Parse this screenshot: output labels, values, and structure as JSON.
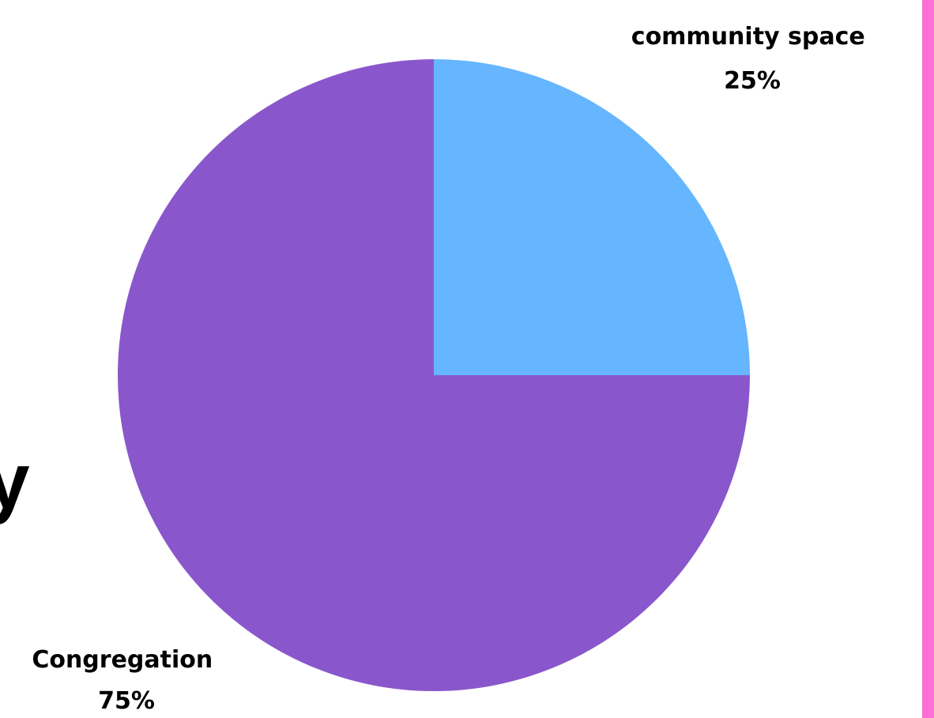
{
  "chart_data": {
    "type": "pie",
    "slices": [
      {
        "label": "community space",
        "value": 25,
        "value_label": "25%",
        "color": "#66b5ff"
      },
      {
        "label": "Congregation",
        "value": 75,
        "value_label": "75%",
        "color": "#8957cb"
      }
    ],
    "start_angle": "12 o'clock",
    "direction": "clockwise"
  },
  "partial_text": "y",
  "accent_bar_color": "#fb6fd6"
}
